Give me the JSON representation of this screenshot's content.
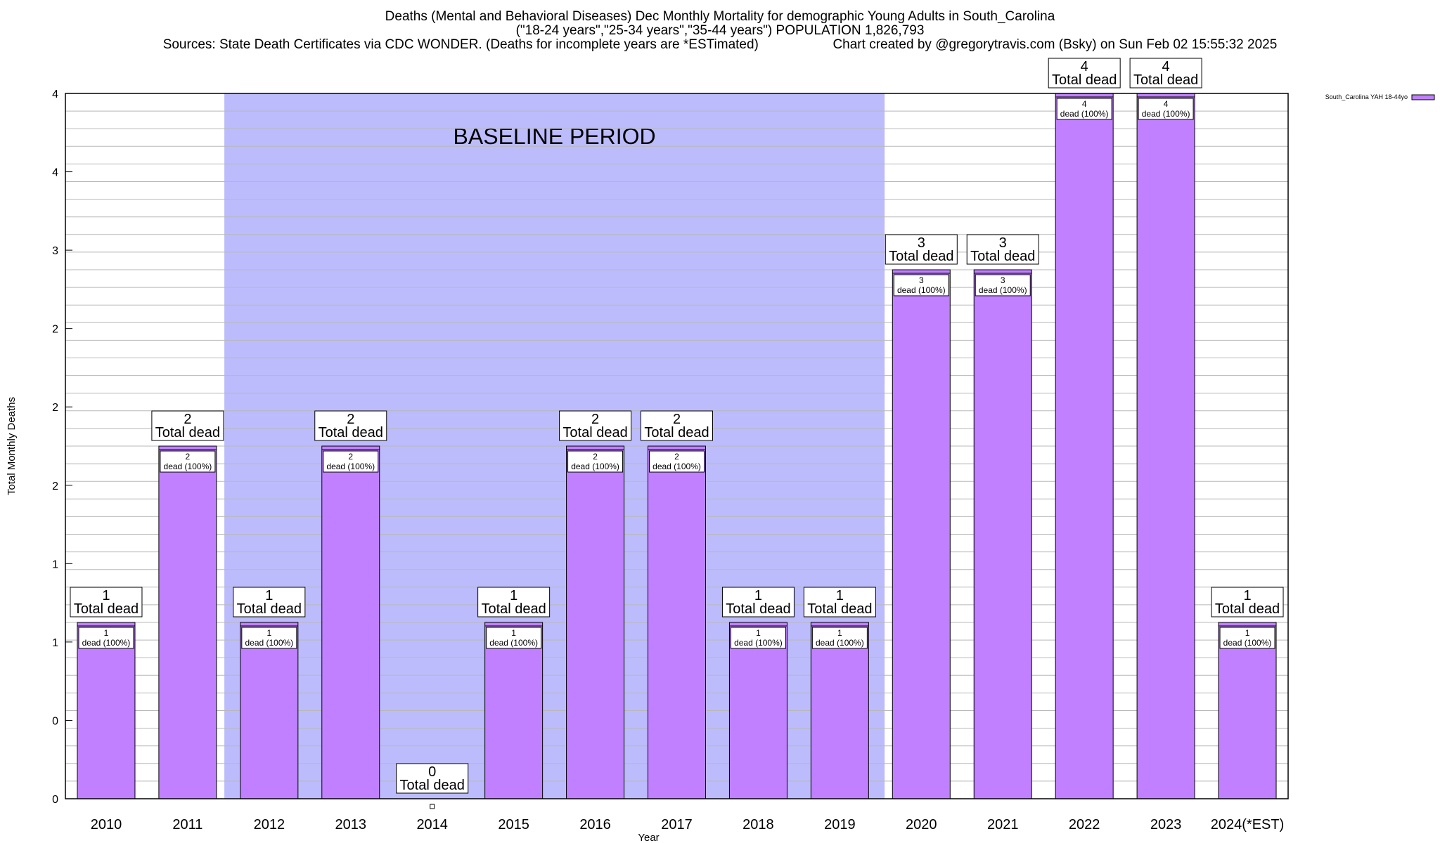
{
  "title": {
    "line1": "Deaths (Mental and Behavioral Diseases) Dec Monthly Mortality for demographic Young Adults in South_Carolina",
    "line2": "(\"18-24 years\",\"25-34 years\",\"35-44 years\") POPULATION 1,826,793",
    "line3_left": "Sources: State Death Certificates via CDC WONDER. (Deaths for incomplete years are *ESTimated)",
    "line3_right": "Chart created by @gregorytravis.com (Bsky) on Sun Feb 02 15:55:32 2025"
  },
  "colors": {
    "bar": "#c080ff",
    "baseline_band": "#bcbcfc",
    "grid": "#b8b8b8"
  },
  "chart_data": {
    "type": "bar",
    "title": "Deaths (Mental and Behavioral Diseases) Dec Monthly Mortality for demographic Young Adults in South_Carolina",
    "xlabel": "Year",
    "ylabel": "Total Monthly Deaths",
    "ylim": [
      0,
      4
    ],
    "y_tick_labels": [
      "0",
      "0",
      "1",
      "1",
      "2",
      "2",
      "2",
      "3",
      "4",
      "4"
    ],
    "categories": [
      "2010",
      "2011",
      "2012",
      "2013",
      "2014",
      "2015",
      "2016",
      "2017",
      "2018",
      "2019",
      "2020",
      "2021",
      "2022",
      "2023",
      "2024(*EST)"
    ],
    "series": [
      {
        "name": "South_Carolina YAH 18-44yo",
        "values": [
          1,
          2,
          1,
          2,
          0,
          1,
          2,
          2,
          1,
          1,
          3,
          3,
          4,
          4,
          1
        ]
      }
    ],
    "top_labels_count": [
      "1",
      "2",
      "1",
      "2",
      "0",
      "1",
      "2",
      "2",
      "1",
      "1",
      "3",
      "3",
      "4",
      "4",
      "1"
    ],
    "top_label_text": "Total dead",
    "inner_labels_count": [
      "1",
      "2",
      "1",
      "2",
      "",
      "1",
      "2",
      "2",
      "1",
      "1",
      "3",
      "3",
      "4",
      "4",
      "1"
    ],
    "inner_label_text": "dead (100%)",
    "baseline_period": {
      "label": "BASELINE PERIOD",
      "from": "2012",
      "to": "2019"
    },
    "grid": true,
    "legend_placement": "top-right"
  }
}
